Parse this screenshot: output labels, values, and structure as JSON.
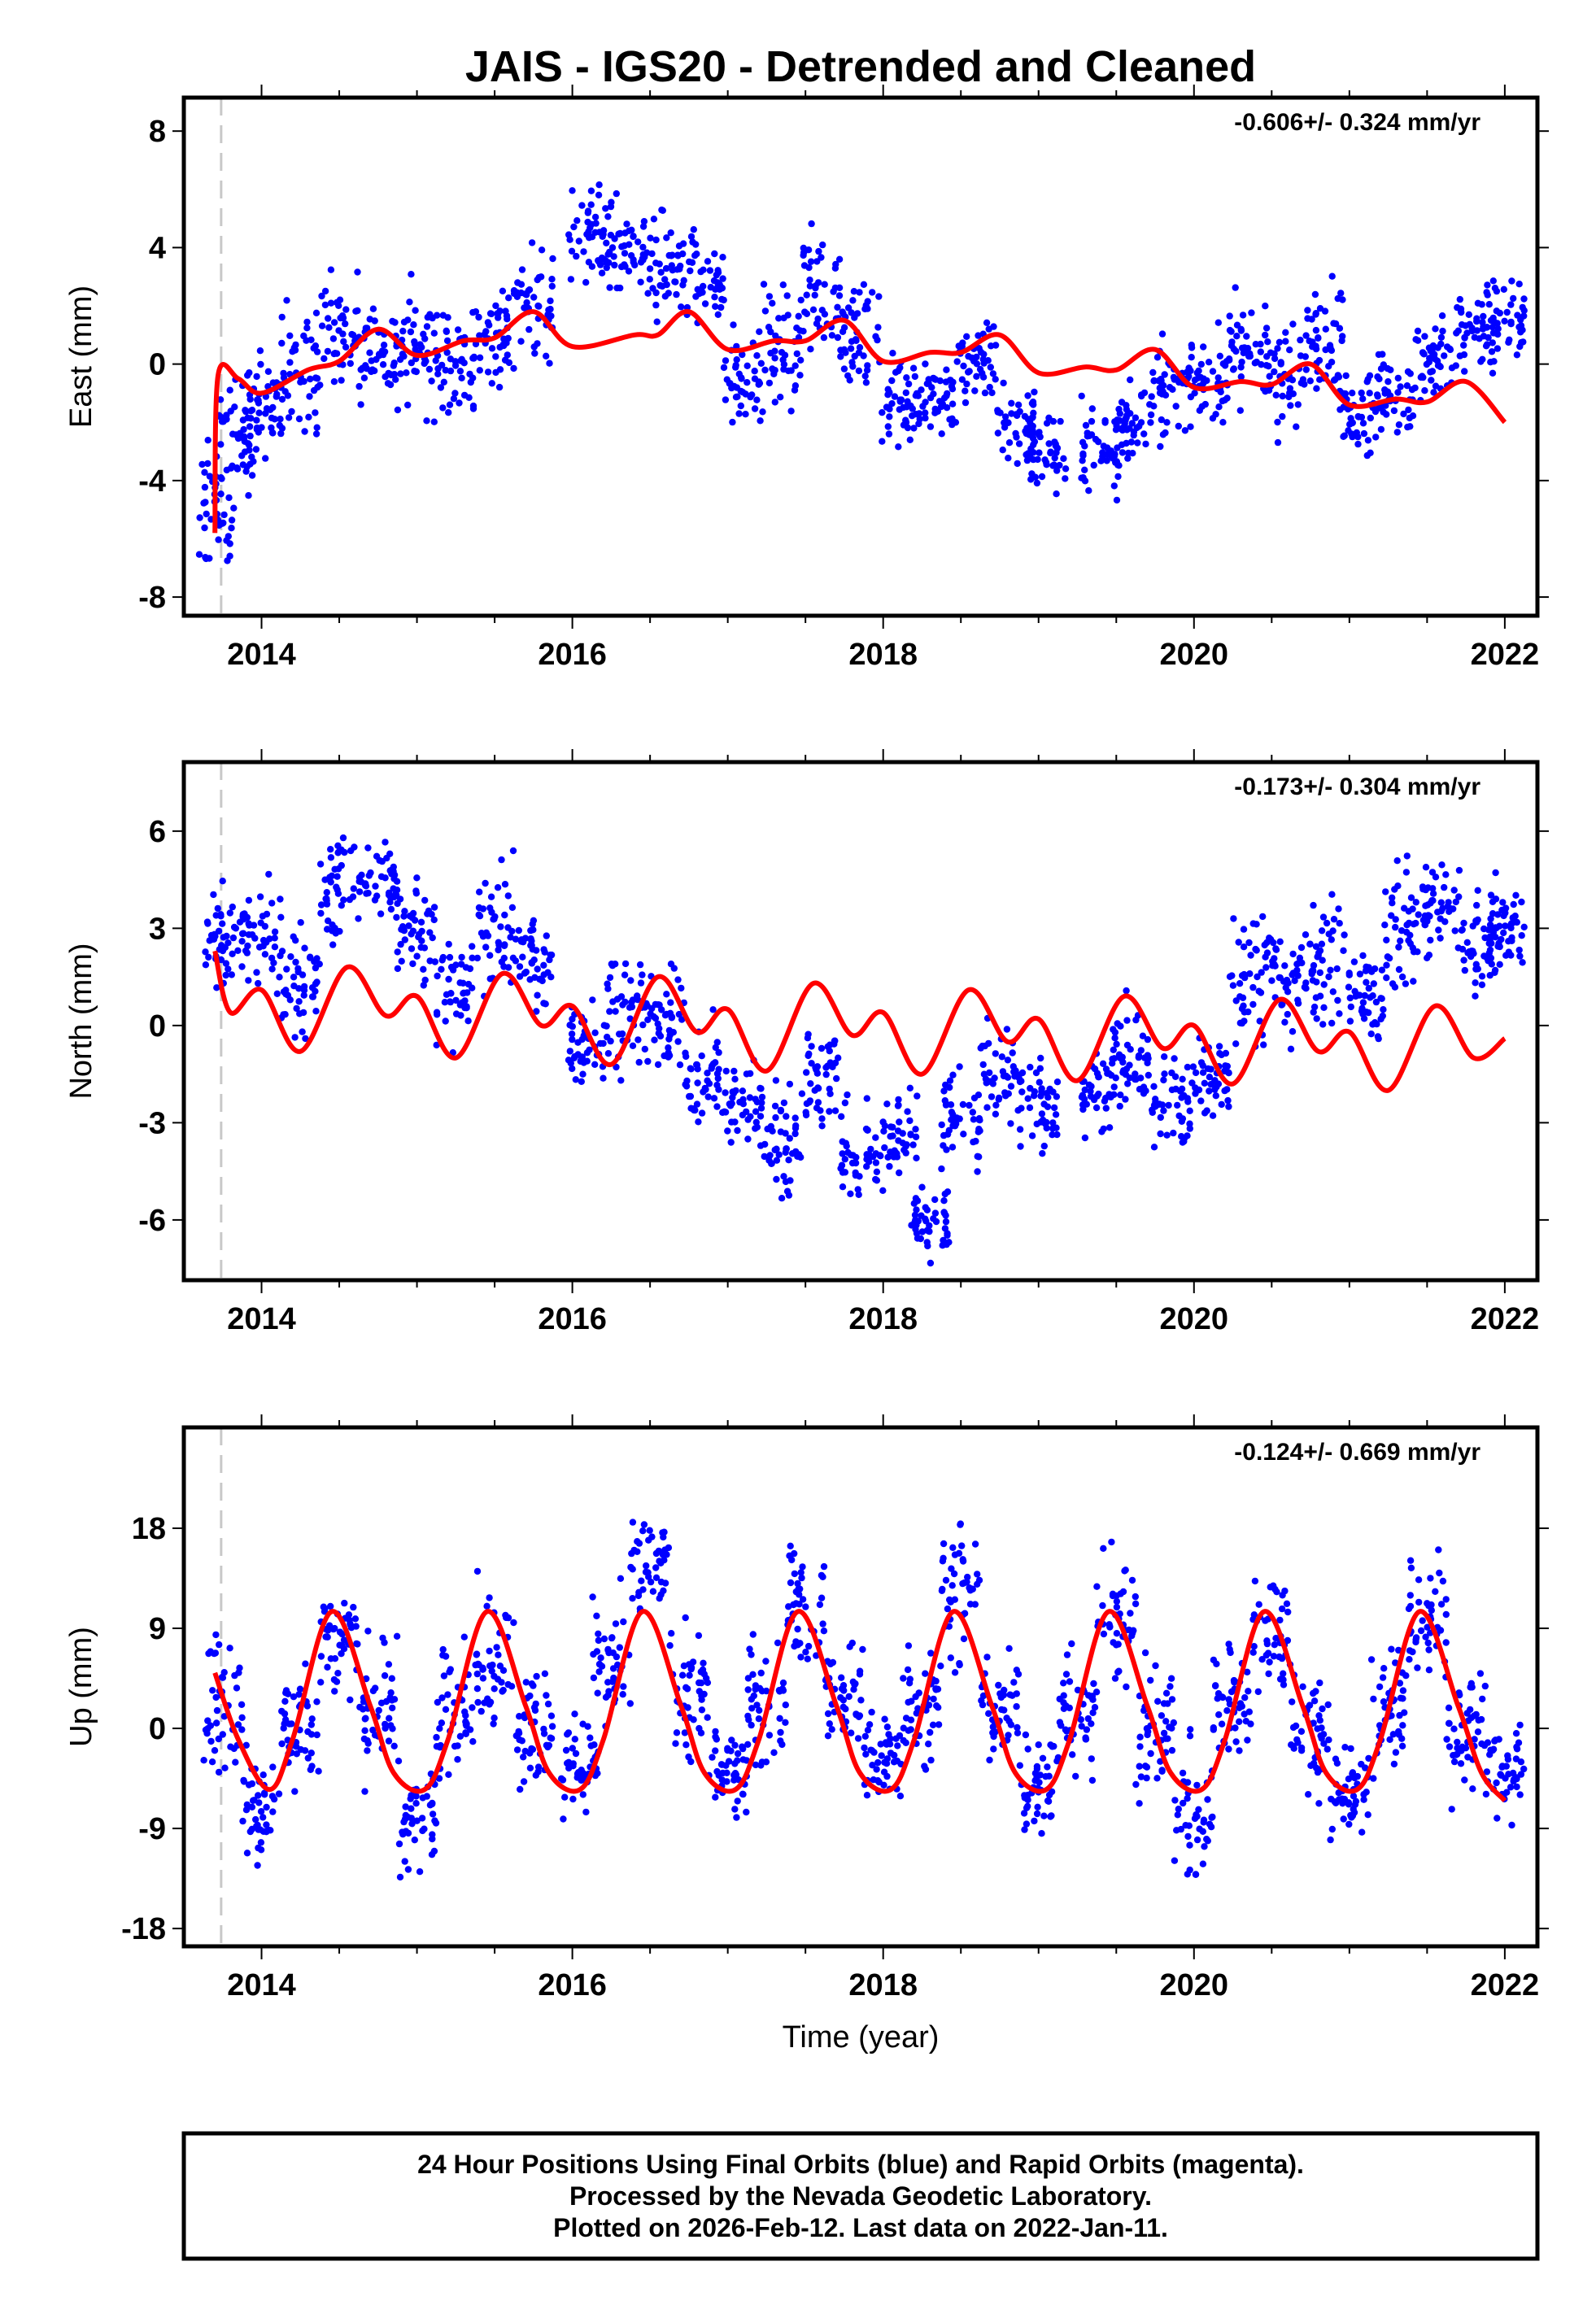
{
  "title": "JAIS - IGS20 - Detrended and Cleaned",
  "colors": {
    "data": "#0000ff",
    "model": "#ff0000",
    "frame": "#000000",
    "marker": "#c8c8c8"
  },
  "chart_data": [
    {
      "type": "scatter",
      "ylabel": "East (mm)",
      "rate": "-0.606+/- 0.324 mm/yr",
      "xlim": [
        2013.5,
        2022.21
      ],
      "ylim": [
        -8.64,
        9.15
      ],
      "xticks": [
        "2014",
        "2016",
        "2018",
        "2020",
        "2022"
      ],
      "yticks": [
        "8",
        "4",
        "0",
        "-4",
        "-8"
      ],
      "marker_year": 2013.74,
      "clusters": [
        [
          2013.7,
          -5,
          1.5
        ],
        [
          2013.85,
          -2.5,
          1.3
        ],
        [
          2014.0,
          -1.5,
          1.2
        ],
        [
          2014.25,
          0,
          1.5
        ],
        [
          2014.5,
          1,
          1.5
        ],
        [
          2014.75,
          0.5,
          1.2
        ],
        [
          2015.0,
          0.5,
          1.4
        ],
        [
          2015.25,
          0,
          1.4
        ],
        [
          2015.5,
          1,
          1.2
        ],
        [
          2015.75,
          2,
          1.4
        ],
        [
          2016.1,
          4.2,
          1.2
        ],
        [
          2016.35,
          3.8,
          1.2
        ],
        [
          2016.6,
          3.2,
          1.2
        ],
        [
          2016.85,
          3,
          1.2
        ],
        [
          2017.1,
          -0.5,
          1.2
        ],
        [
          2017.35,
          0.5,
          1.3
        ],
        [
          2017.6,
          2.5,
          1.5
        ],
        [
          2017.85,
          1,
          1.2
        ],
        [
          2018.1,
          -1.2,
          1
        ],
        [
          2018.35,
          -1,
          1
        ],
        [
          2018.6,
          0,
          1.2
        ],
        [
          2018.85,
          -2,
          1
        ],
        [
          2019.05,
          -3,
          1
        ],
        [
          2019.4,
          -3,
          1.2
        ],
        [
          2019.6,
          -2,
          1
        ],
        [
          2019.85,
          -1,
          1
        ],
        [
          2020.1,
          -0.5,
          1
        ],
        [
          2020.35,
          0.5,
          1.2
        ],
        [
          2020.6,
          -0.5,
          1.3
        ],
        [
          2020.85,
          1,
          1.2
        ],
        [
          2021.05,
          -1.5,
          1
        ],
        [
          2021.3,
          -1,
          1
        ],
        [
          2021.55,
          0,
          1.2
        ],
        [
          2021.8,
          1,
          1
        ],
        [
          2022.0,
          1.5,
          1
        ]
      ],
      "model": [
        [
          2013.7,
          -5.8
        ],
        [
          2013.72,
          -0.4
        ],
        [
          2013.85,
          -0.5
        ],
        [
          2014.0,
          -1.0
        ],
        [
          2014.3,
          -0.2
        ],
        [
          2014.5,
          0.1
        ],
        [
          2014.75,
          1.2
        ],
        [
          2015.0,
          0.3
        ],
        [
          2015.3,
          0.8
        ],
        [
          2015.5,
          0.9
        ],
        [
          2015.75,
          1.8
        ],
        [
          2016.0,
          0.6
        ],
        [
          2016.4,
          1.0
        ],
        [
          2016.55,
          1.0
        ],
        [
          2016.75,
          1.8
        ],
        [
          2017.0,
          0.5
        ],
        [
          2017.3,
          0.8
        ],
        [
          2017.5,
          0.8
        ],
        [
          2017.75,
          1.5
        ],
        [
          2018.0,
          0.1
        ],
        [
          2018.3,
          0.4
        ],
        [
          2018.5,
          0.4
        ],
        [
          2018.75,
          1.0
        ],
        [
          2019.0,
          -0.3
        ],
        [
          2019.3,
          -0.1
        ],
        [
          2019.5,
          -0.2
        ],
        [
          2019.75,
          0.5
        ],
        [
          2020.0,
          -0.8
        ],
        [
          2020.3,
          -0.6
        ],
        [
          2020.5,
          -0.7
        ],
        [
          2020.75,
          0.0
        ],
        [
          2021.0,
          -1.4
        ],
        [
          2021.3,
          -1.2
        ],
        [
          2021.5,
          -1.3
        ],
        [
          2021.75,
          -0.6
        ],
        [
          2022.0,
          -2.0
        ]
      ]
    },
    {
      "type": "scatter",
      "ylabel": "North (mm)",
      "rate": "-0.173+/- 0.304 mm/yr",
      "xlim": [
        2013.5,
        2022.21
      ],
      "ylim": [
        -7.86,
        8.13
      ],
      "xticks": [
        "2014",
        "2016",
        "2018",
        "2020",
        "2022"
      ],
      "yticks": [
        "6",
        "3",
        "0",
        "-3",
        "-6"
      ],
      "marker_year": 2013.74,
      "clusters": [
        [
          2013.75,
          2.5,
          1
        ],
        [
          2014.0,
          2.7,
          1
        ],
        [
          2014.25,
          1.5,
          1.2
        ],
        [
          2014.5,
          4,
          1.3
        ],
        [
          2014.75,
          4.5,
          1
        ],
        [
          2015.0,
          3,
          1
        ],
        [
          2015.25,
          1,
          1.2
        ],
        [
          2015.5,
          3,
          1.5
        ],
        [
          2015.75,
          2,
          1
        ],
        [
          2016.1,
          -0.5,
          1
        ],
        [
          2016.35,
          0.5,
          1.2
        ],
        [
          2016.6,
          0,
          1
        ],
        [
          2016.85,
          -1.5,
          1
        ],
        [
          2017.1,
          -2.5,
          1
        ],
        [
          2017.35,
          -3.5,
          1.2
        ],
        [
          2017.6,
          -1.5,
          1.2
        ],
        [
          2017.85,
          -4,
          1.2
        ],
        [
          2018.1,
          -3.5,
          1
        ],
        [
          2018.3,
          -6,
          1
        ],
        [
          2018.5,
          -3,
          1
        ],
        [
          2018.75,
          -1.5,
          1
        ],
        [
          2019.0,
          -2.5,
          1
        ],
        [
          2019.4,
          -2,
          1
        ],
        [
          2019.6,
          -1,
          1
        ],
        [
          2019.85,
          -2.5,
          1
        ],
        [
          2020.1,
          -1.5,
          1
        ],
        [
          2020.35,
          1.5,
          1.3
        ],
        [
          2020.6,
          1.5,
          1.2
        ],
        [
          2020.85,
          2,
          1.3
        ],
        [
          2021.1,
          1,
          1.2
        ],
        [
          2021.35,
          3,
          1.5
        ],
        [
          2021.6,
          3.5,
          1.2
        ],
        [
          2021.85,
          2.5,
          1
        ],
        [
          2022.0,
          3,
          1
        ]
      ],
      "model": [
        [
          2013.7,
          2.3
        ],
        [
          2013.8,
          0.4
        ],
        [
          2014.0,
          1.1
        ],
        [
          2014.25,
          -0.8
        ],
        [
          2014.55,
          1.8
        ],
        [
          2014.8,
          0.3
        ],
        [
          2015.0,
          0.9
        ],
        [
          2015.25,
          -1.0
        ],
        [
          2015.55,
          1.6
        ],
        [
          2015.8,
          0.0
        ],
        [
          2016.0,
          0.6
        ],
        [
          2016.25,
          -1.2
        ],
        [
          2016.55,
          1.5
        ],
        [
          2016.8,
          -0.2
        ],
        [
          2017.0,
          0.5
        ],
        [
          2017.25,
          -1.4
        ],
        [
          2017.55,
          1.3
        ],
        [
          2017.8,
          -0.3
        ],
        [
          2018.0,
          0.4
        ],
        [
          2018.25,
          -1.5
        ],
        [
          2018.55,
          1.1
        ],
        [
          2018.8,
          -0.5
        ],
        [
          2019.0,
          0.2
        ],
        [
          2019.25,
          -1.7
        ],
        [
          2019.55,
          0.9
        ],
        [
          2019.8,
          -0.7
        ],
        [
          2020.0,
          0.0
        ],
        [
          2020.25,
          -1.8
        ],
        [
          2020.55,
          0.8
        ],
        [
          2020.8,
          -0.8
        ],
        [
          2021.0,
          -0.2
        ],
        [
          2021.25,
          -2.0
        ],
        [
          2021.55,
          0.6
        ],
        [
          2021.8,
          -1.0
        ],
        [
          2022.0,
          -0.4
        ]
      ]
    },
    {
      "type": "scatter",
      "ylabel": "Up (mm)",
      "xlabel": "Time (year)",
      "rate": "-0.124+/- 0.669 mm/yr",
      "xlim": [
        2013.5,
        2022.21
      ],
      "ylim": [
        -19.6,
        27.07
      ],
      "xticks": [
        "2014",
        "2016",
        "2018",
        "2020",
        "2022"
      ],
      "yticks": [
        "18",
        "9",
        "0",
        "-9",
        "-18"
      ],
      "marker_year": 2013.74,
      "clusters": [
        [
          2013.75,
          2,
          4
        ],
        [
          2014.0,
          -7,
          4
        ],
        [
          2014.25,
          0,
          4
        ],
        [
          2014.5,
          8,
          4
        ],
        [
          2014.75,
          2,
          4
        ],
        [
          2015.0,
          -8,
          3.5
        ],
        [
          2015.25,
          2,
          4
        ],
        [
          2015.5,
          6,
          4
        ],
        [
          2015.75,
          0,
          4
        ],
        [
          2016.05,
          -3,
          3
        ],
        [
          2016.25,
          5,
          4
        ],
        [
          2016.5,
          14,
          3.5
        ],
        [
          2016.75,
          4,
          4
        ],
        [
          2017.0,
          -4,
          3
        ],
        [
          2017.25,
          2,
          4
        ],
        [
          2017.5,
          11,
          4
        ],
        [
          2017.75,
          3,
          4
        ],
        [
          2018.0,
          -3,
          3
        ],
        [
          2018.25,
          2,
          4
        ],
        [
          2018.5,
          12,
          4
        ],
        [
          2018.75,
          2,
          4
        ],
        [
          2019.0,
          -5,
          4
        ],
        [
          2019.25,
          2,
          4
        ],
        [
          2019.5,
          10,
          4
        ],
        [
          2019.75,
          0,
          4
        ],
        [
          2020.0,
          -8,
          4
        ],
        [
          2020.25,
          2,
          4
        ],
        [
          2020.5,
          9,
          4
        ],
        [
          2020.75,
          0,
          4
        ],
        [
          2021.0,
          -6,
          3
        ],
        [
          2021.25,
          2,
          4
        ],
        [
          2021.5,
          10,
          4
        ],
        [
          2021.75,
          0,
          4
        ],
        [
          2022.0,
          -4,
          3
        ]
      ],
      "model": [
        [
          2013.7,
          5
        ],
        [
          2013.85,
          -1
        ],
        [
          2014.05,
          -5.5
        ],
        [
          2014.2,
          -1
        ],
        [
          2014.45,
          10.5
        ],
        [
          2014.7,
          2
        ],
        [
          2014.85,
          -4
        ],
        [
          2015.05,
          -5.5
        ],
        [
          2015.2,
          -1
        ],
        [
          2015.45,
          10.5
        ],
        [
          2015.7,
          2
        ],
        [
          2015.85,
          -4
        ],
        [
          2016.05,
          -5.5
        ],
        [
          2016.2,
          -1
        ],
        [
          2016.45,
          10.5
        ],
        [
          2016.7,
          2
        ],
        [
          2016.85,
          -4
        ],
        [
          2017.05,
          -5.5
        ],
        [
          2017.2,
          -1
        ],
        [
          2017.45,
          10.5
        ],
        [
          2017.7,
          2
        ],
        [
          2017.85,
          -4
        ],
        [
          2018.05,
          -5.5
        ],
        [
          2018.2,
          -1
        ],
        [
          2018.45,
          10.5
        ],
        [
          2018.7,
          2
        ],
        [
          2018.85,
          -4
        ],
        [
          2019.05,
          -5.5
        ],
        [
          2019.2,
          -1
        ],
        [
          2019.45,
          10.5
        ],
        [
          2019.7,
          2
        ],
        [
          2019.85,
          -4
        ],
        [
          2020.05,
          -5.5
        ],
        [
          2020.2,
          -1
        ],
        [
          2020.45,
          10.5
        ],
        [
          2020.7,
          2
        ],
        [
          2020.85,
          -4
        ],
        [
          2021.05,
          -5.5
        ],
        [
          2021.2,
          -1
        ],
        [
          2021.45,
          10.5
        ],
        [
          2021.7,
          2
        ],
        [
          2021.85,
          -4
        ],
        [
          2022.0,
          -6.5
        ]
      ]
    }
  ],
  "footer": {
    "line1": "24 Hour Positions Using Final Orbits (blue) and Rapid Orbits (magenta).",
    "line2": "Processed by the Nevada Geodetic Laboratory.",
    "line3": "Plotted on 2026-Feb-12. Last data on 2022-Jan-11."
  }
}
